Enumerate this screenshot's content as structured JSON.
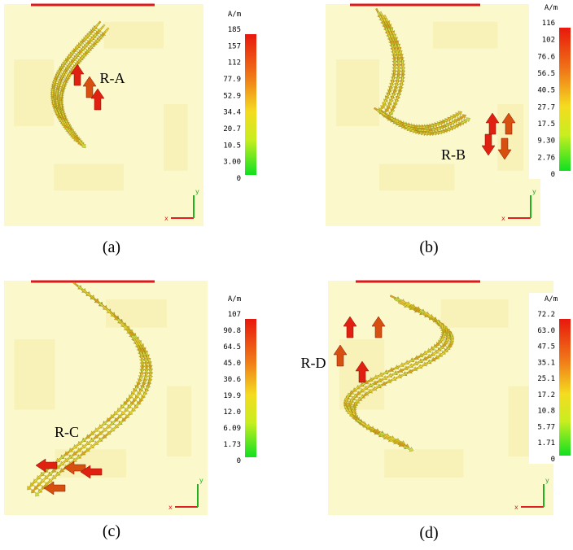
{
  "panels": [
    {
      "caption": "(a)",
      "region_label": "R-A",
      "unit": "A/m",
      "scale_labels": [
        "185",
        "157",
        "112",
        "77.9",
        "52.9",
        "34.4",
        "20.7",
        "10.5",
        "3.00",
        "0"
      ],
      "axis_x": "x",
      "axis_y": "y"
    },
    {
      "caption": "(b)",
      "region_label": "R-B",
      "unit": "A/m",
      "scale_labels": [
        "116",
        "102",
        "76.6",
        "56.5",
        "40.5",
        "27.7",
        "17.5",
        "9.30",
        "2.76",
        "0"
      ],
      "axis_x": "x",
      "axis_y": "y"
    },
    {
      "caption": "(c)",
      "region_label": "R-C",
      "unit": "A/m",
      "scale_labels": [
        "107",
        "90.8",
        "64.5",
        "45.0",
        "30.6",
        "19.9",
        "12.0",
        "6.09",
        "1.73",
        "0"
      ],
      "axis_x": "x",
      "axis_y": "y"
    },
    {
      "caption": "(d)",
      "region_label": "R-D",
      "unit": "A/m",
      "scale_labels": [
        "72.2",
        "63.0",
        "47.5",
        "35.1",
        "25.1",
        "17.2",
        "10.8",
        "5.77",
        "1.71",
        "0"
      ],
      "axis_x": "x",
      "axis_y": "y"
    }
  ]
}
